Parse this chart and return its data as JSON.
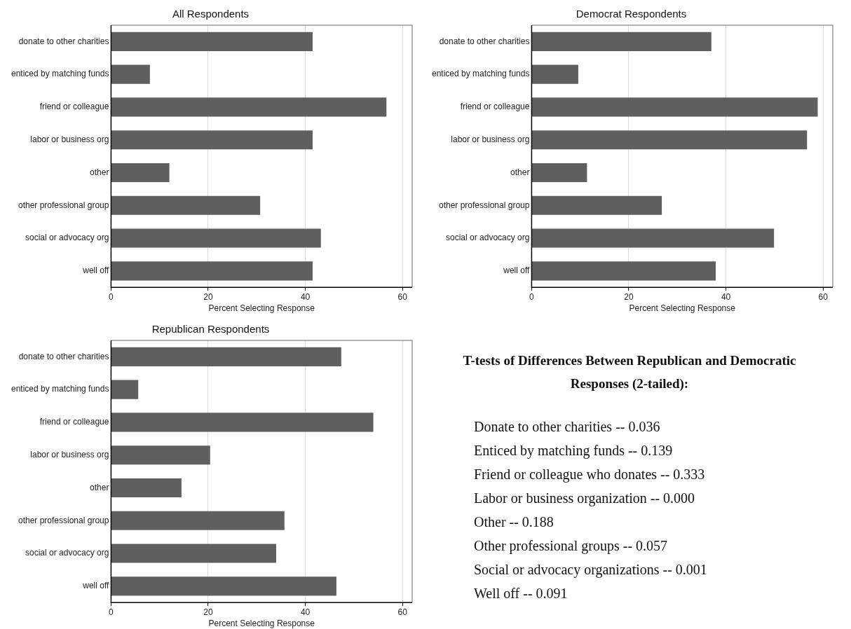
{
  "chart_data": [
    {
      "type": "bar",
      "orientation": "horizontal",
      "title": "All Respondents",
      "xlabel": "Percent Selecting Response",
      "categories": [
        "donate to other charities",
        "enticed by matching funds",
        "friend or colleague",
        "labor or business org",
        "other",
        "other professional group",
        "social or advocacy org",
        "well off"
      ],
      "values": [
        41.5,
        8,
        56.7,
        41.5,
        12,
        30.7,
        43.2,
        41.5
      ],
      "color": "#5f5f5f",
      "xlim": [
        0,
        62
      ],
      "xticks": [
        0,
        20,
        40,
        60
      ],
      "grid": "x"
    },
    {
      "type": "bar",
      "orientation": "horizontal",
      "title": "Democrat Respondents",
      "xlabel": "Percent Selecting Response",
      "categories": [
        "donate to other charities",
        "enticed by matching funds",
        "friend or colleague",
        "labor or business org",
        "other",
        "other professional group",
        "social or advocacy org",
        "well off"
      ],
      "values": [
        37,
        9.6,
        58.9,
        56.7,
        11.4,
        26.8,
        49.9,
        37.9
      ],
      "color": "#5f5f5f",
      "xlim": [
        0,
        62
      ],
      "xticks": [
        0,
        20,
        40,
        60
      ],
      "grid": "x"
    },
    {
      "type": "bar",
      "orientation": "horizontal",
      "title": "Republican Respondents",
      "xlabel": "Percent Selecting Response",
      "categories": [
        "donate to other charities",
        "enticed by matching funds",
        "friend or colleague",
        "labor or business org",
        "other",
        "other professional group",
        "social or advocacy org",
        "well off"
      ],
      "values": [
        47.4,
        5.6,
        54,
        20.4,
        14.5,
        35.7,
        34,
        46.4
      ],
      "color": "#5f5f5f",
      "xlim": [
        0,
        62
      ],
      "xticks": [
        0,
        20,
        40,
        60
      ],
      "grid": "x"
    },
    {
      "type": "other",
      "title": "T-tests of Differences Between Republican and Democratic Responses (2-tailed):",
      "annotations": [
        "Donate to other charities -- 0.036",
        "Enticed by matching funds -- 0.139",
        "Friend or colleague who donates -- 0.333",
        "Labor or business organization -- 0.000",
        "Other -- 0.188",
        "Other professional groups -- 0.057",
        "Social or advocacy organizations -- 0.001",
        "Well off -- 0.091"
      ]
    }
  ]
}
